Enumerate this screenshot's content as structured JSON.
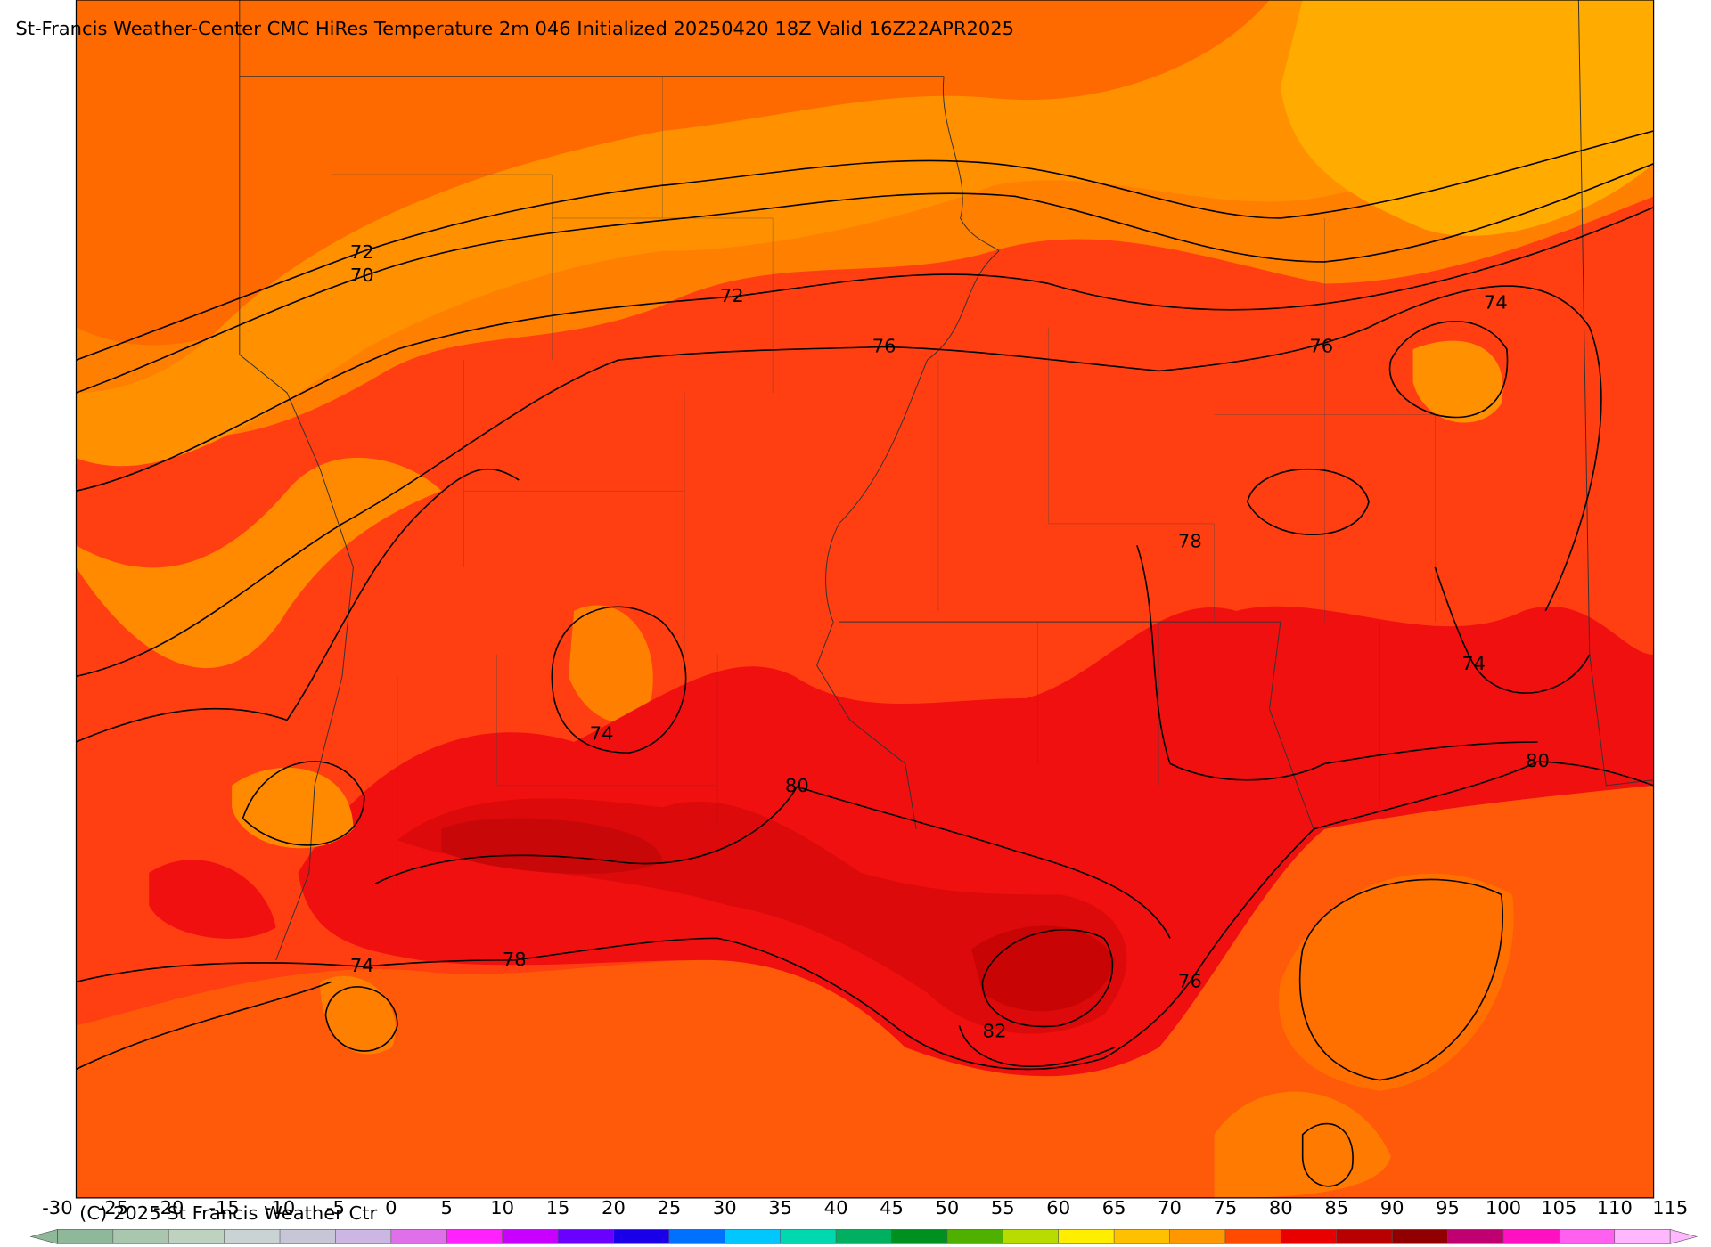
{
  "header": {
    "title": "St-Francis Weather-Center CMC HiRes Temperature 2m  046 Initialized 20250420 18Z Valid 16Z22APR2025"
  },
  "contour_labels": [
    72,
    70,
    72,
    76,
    76,
    74,
    78,
    74,
    74,
    80,
    80,
    78,
    74,
    76,
    82
  ],
  "colorbar": {
    "ticks": [
      -30,
      -25,
      -20,
      -15,
      -10,
      -5,
      0,
      5,
      10,
      15,
      20,
      25,
      30,
      35,
      40,
      45,
      50,
      55,
      60,
      65,
      70,
      75,
      80,
      85,
      90,
      95,
      100,
      105,
      110,
      115
    ],
    "colors": [
      "#8fb89a",
      "#a8c7ae",
      "#bdd3c0",
      "#c9d3d3",
      "#c6c6d6",
      "#cbb6e4",
      "#e070ea",
      "#ff22ff",
      "#c800ff",
      "#6a00ff",
      "#1a00e8",
      "#0070ff",
      "#00c8ff",
      "#00d8b0",
      "#00b060",
      "#009020",
      "#50b000",
      "#b8dc00",
      "#ffee00",
      "#ffc000",
      "#ff9800",
      "#ff4a00",
      "#e80000",
      "#b80000",
      "#900000",
      "#c00070",
      "#ff10c0",
      "#ff60f0",
      "#ffb8ff"
    ],
    "copyright": "(C) 2025 St Francis Weather Ctr"
  }
}
